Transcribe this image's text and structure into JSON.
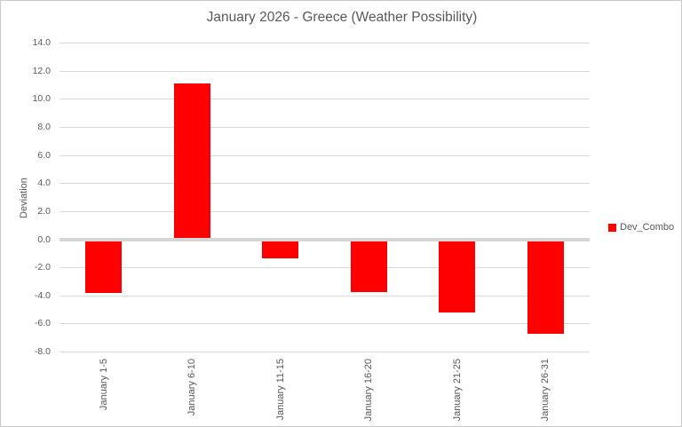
{
  "chart_data": {
    "type": "bar",
    "title": "January 2026 - Greece (Weather Possibility)",
    "xlabel": "",
    "ylabel": "Deviation",
    "categories": [
      "January 1-5",
      "January 6-10",
      "January 11-15",
      "January 16-20",
      "January 21-25",
      "January 26-31"
    ],
    "series": [
      {
        "name": "Dev_Combo",
        "color": "#ff0000",
        "values": [
          -3.8,
          11.1,
          -1.3,
          -3.7,
          -5.2,
          -6.7
        ]
      }
    ],
    "ylim": [
      -8,
      14
    ],
    "ytick_step": 2,
    "yticks": [
      14,
      12,
      10,
      8,
      6,
      4,
      2,
      0,
      -2,
      -4,
      -6,
      -8
    ],
    "ytick_labels": [
      "14.0",
      "12.0",
      "10.0",
      "8.0",
      "6.0",
      "4.0",
      "2.0",
      "0.0",
      "-2.0",
      "-4.0",
      "-6.0",
      "-8.0"
    ],
    "grid": true,
    "legend_position": "right",
    "legend_entries": [
      {
        "label": "Dev_Combo",
        "color": "#ff0000"
      }
    ],
    "colors": {
      "bar": "#ff0000",
      "grid_line": "#dadada",
      "zero_line": "#d6d6d6",
      "text": "#595959",
      "frame_border": "#c9c9c9",
      "background": "#ffffff"
    }
  }
}
